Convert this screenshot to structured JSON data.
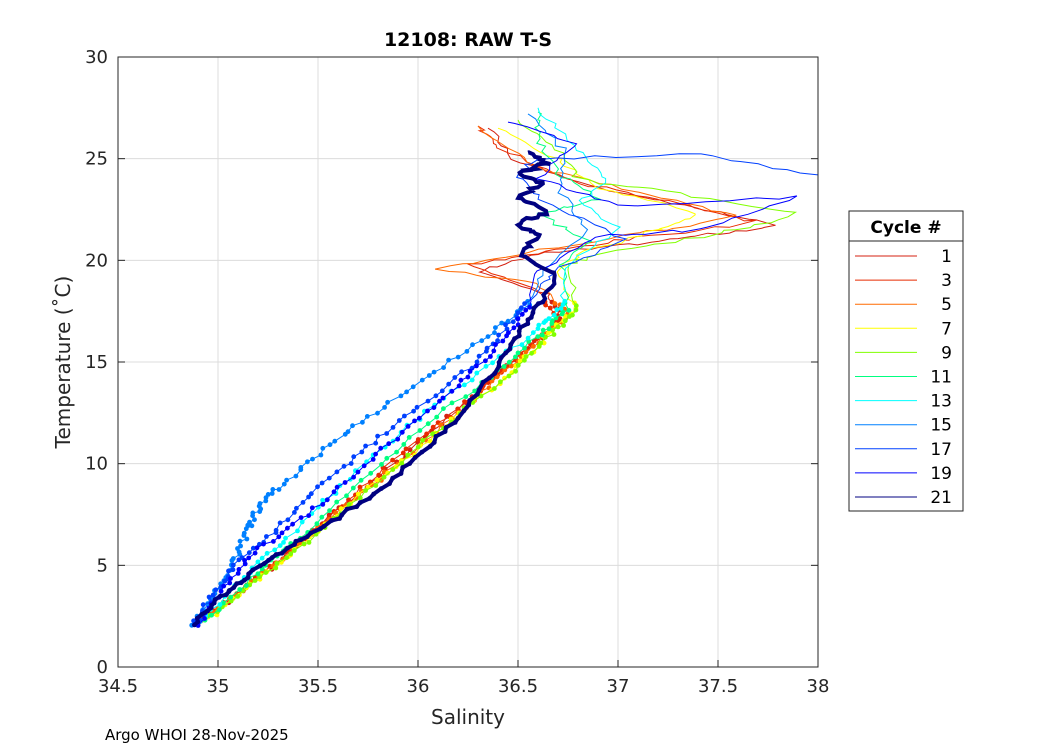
{
  "chart_data": {
    "type": "line",
    "title": "12108: RAW T-S",
    "xlabel": "Salinity",
    "ylabel": "Temperature (˚C)",
    "xlim": [
      34.5,
      38
    ],
    "ylim": [
      0,
      30
    ],
    "xticks": [
      "34.5",
      "35",
      "35.5",
      "36",
      "36.5",
      "37",
      "37.5",
      "38"
    ],
    "yticks": [
      "0",
      "5",
      "10",
      "15",
      "20",
      "25",
      "30"
    ],
    "grid": true,
    "legend": {
      "title": "Cycle #",
      "placement": "outside-right"
    },
    "series": [
      {
        "name": "1",
        "color": "#d42010",
        "points": [
          [
            34.9,
            2.1
          ],
          [
            35.1,
            3.6
          ],
          [
            35.35,
            5.6
          ],
          [
            35.7,
            8.5
          ],
          [
            36.0,
            11
          ],
          [
            36.3,
            13.6
          ],
          [
            36.55,
            15.6
          ],
          [
            36.72,
            17.2
          ],
          [
            36.65,
            18.4
          ],
          [
            36.3,
            19.4
          ],
          [
            36.6,
            20.3
          ],
          [
            37.0,
            20.7
          ],
          [
            37.4,
            21.2
          ],
          [
            37.8,
            21.7
          ],
          [
            37.4,
            22.6
          ],
          [
            36.9,
            23.6
          ],
          [
            36.5,
            24.8
          ],
          [
            36.35,
            26.5
          ]
        ]
      },
      {
        "name": "3",
        "color": "#e82a00",
        "points": [
          [
            34.9,
            2.2
          ],
          [
            35.12,
            3.8
          ],
          [
            35.4,
            6
          ],
          [
            35.65,
            8.2
          ],
          [
            35.95,
            10.8
          ],
          [
            36.28,
            13.3
          ],
          [
            36.5,
            15.2
          ],
          [
            36.7,
            17
          ],
          [
            36.6,
            18.6
          ],
          [
            36.25,
            19.8
          ],
          [
            36.7,
            20.5
          ],
          [
            37.1,
            21.1
          ],
          [
            37.7,
            21.9
          ],
          [
            37.3,
            22.8
          ],
          [
            36.8,
            23.8
          ],
          [
            36.4,
            25.5
          ],
          [
            36.3,
            26.6
          ]
        ]
      },
      {
        "name": "5",
        "color": "#ff6a00",
        "points": [
          [
            34.92,
            2.3
          ],
          [
            35.15,
            4
          ],
          [
            35.38,
            5.8
          ],
          [
            35.72,
            8.6
          ],
          [
            36.05,
            11.2
          ],
          [
            36.35,
            13.8
          ],
          [
            36.58,
            15.8
          ],
          [
            36.75,
            17.4
          ],
          [
            36.6,
            18.8
          ],
          [
            36.1,
            19.6
          ],
          [
            36.55,
            20.4
          ],
          [
            37.1,
            21.3
          ],
          [
            37.6,
            22.2
          ],
          [
            37.1,
            23.4
          ],
          [
            36.6,
            24.5
          ],
          [
            36.3,
            26.6
          ]
        ]
      },
      {
        "name": "7",
        "color": "#ffff00",
        "points": [
          [
            34.95,
            2.4
          ],
          [
            35.2,
            4.3
          ],
          [
            35.42,
            6
          ],
          [
            35.75,
            8.8
          ],
          [
            36.1,
            11.5
          ],
          [
            36.4,
            14
          ],
          [
            36.62,
            16
          ],
          [
            36.78,
            17.6
          ],
          [
            36.7,
            19.5
          ],
          [
            36.8,
            20.3
          ],
          [
            37.2,
            21.5
          ],
          [
            37.4,
            22.3
          ],
          [
            36.9,
            23.6
          ],
          [
            36.7,
            25
          ],
          [
            36.4,
            26.5
          ]
        ]
      },
      {
        "name": "9",
        "color": "#80ff00",
        "points": [
          [
            34.95,
            2.5
          ],
          [
            35.22,
            4.5
          ],
          [
            35.45,
            6.2
          ],
          [
            35.78,
            9
          ],
          [
            36.12,
            11.8
          ],
          [
            36.45,
            14.3
          ],
          [
            36.65,
            16.2
          ],
          [
            36.8,
            17.5
          ],
          [
            36.75,
            19.8
          ],
          [
            36.9,
            20.3
          ],
          [
            37.5,
            21.3
          ],
          [
            37.9,
            22.3
          ],
          [
            37.3,
            23.3
          ],
          [
            36.8,
            24
          ],
          [
            36.7,
            25.5
          ],
          [
            36.5,
            26.9
          ]
        ]
      },
      {
        "name": "11",
        "color": "#00ff80",
        "points": [
          [
            34.93,
            2.3
          ],
          [
            35.2,
            4.6
          ],
          [
            35.4,
            6.3
          ],
          [
            35.72,
            9.2
          ],
          [
            36.05,
            12
          ],
          [
            36.4,
            14.6
          ],
          [
            36.62,
            16.4
          ],
          [
            36.75,
            17.6
          ],
          [
            36.72,
            19.8
          ],
          [
            36.85,
            21
          ],
          [
            36.6,
            22.3
          ],
          [
            36.9,
            23
          ],
          [
            36.7,
            24.3
          ],
          [
            36.6,
            26
          ],
          [
            36.6,
            27.3
          ]
        ]
      },
      {
        "name": "13",
        "color": "#00ffff",
        "points": [
          [
            34.92,
            2.2
          ],
          [
            35.15,
            4.7
          ],
          [
            35.35,
            6.4
          ],
          [
            35.65,
            9.3
          ],
          [
            36.0,
            12.2
          ],
          [
            36.35,
            14.8
          ],
          [
            36.6,
            16.6
          ],
          [
            36.72,
            17.8
          ],
          [
            36.75,
            19.8
          ],
          [
            37.0,
            21.6
          ],
          [
            36.8,
            22.8
          ],
          [
            36.95,
            24
          ],
          [
            36.8,
            25.4
          ],
          [
            36.6,
            27.5
          ]
        ]
      },
      {
        "name": "15",
        "color": "#0080ff",
        "points": [
          [
            34.87,
            2.1
          ],
          [
            34.95,
            3
          ],
          [
            35.02,
            4.2
          ],
          [
            35.1,
            5.5
          ],
          [
            35.15,
            6.8
          ],
          [
            35.2,
            7.8
          ],
          [
            35.3,
            8.8
          ],
          [
            35.5,
            10.5
          ],
          [
            35.75,
            12.3
          ],
          [
            36.05,
            14.3
          ],
          [
            36.35,
            16.3
          ],
          [
            36.55,
            17.8
          ],
          [
            36.62,
            19.5
          ],
          [
            36.85,
            21.5
          ],
          [
            36.7,
            23.5
          ],
          [
            36.75,
            25.2
          ],
          [
            36.55,
            27.2
          ]
        ]
      },
      {
        "name": "17",
        "color": "#0040ff",
        "points": [
          [
            34.88,
            2.2
          ],
          [
            35.0,
            3.8
          ],
          [
            35.1,
            5.2
          ],
          [
            35.3,
            6.8
          ],
          [
            35.5,
            8.8
          ],
          [
            35.75,
            10.8
          ],
          [
            36.0,
            12.8
          ],
          [
            36.3,
            15
          ],
          [
            36.45,
            16.8
          ],
          [
            36.6,
            18.5
          ],
          [
            36.7,
            19.6
          ],
          [
            37.05,
            21
          ],
          [
            36.6,
            23
          ],
          [
            36.5,
            24.3
          ],
          [
            36.6,
            25
          ],
          [
            37.4,
            25.2
          ],
          [
            38.0,
            24.2
          ]
        ]
      },
      {
        "name": "19",
        "color": "#0000ff",
        "points": [
          [
            34.9,
            2.1
          ],
          [
            35.05,
            4.2
          ],
          [
            35.2,
            5.8
          ],
          [
            35.45,
            7.5
          ],
          [
            35.7,
            9.6
          ],
          [
            35.95,
            11.8
          ],
          [
            36.2,
            13.8
          ],
          [
            36.4,
            15.8
          ],
          [
            36.55,
            17.5
          ],
          [
            36.6,
            19.5
          ],
          [
            36.9,
            21.2
          ],
          [
            37.4,
            21.5
          ],
          [
            37.9,
            23.1
          ],
          [
            37.0,
            22.7
          ],
          [
            36.6,
            24
          ],
          [
            36.8,
            25.8
          ],
          [
            36.45,
            26.8
          ]
        ]
      },
      {
        "name": "21",
        "color": "#000080",
        "points": [
          [
            34.88,
            2.1
          ],
          [
            35.0,
            3.3
          ],
          [
            35.12,
            4.3
          ],
          [
            35.3,
            5.5
          ],
          [
            35.5,
            6.8
          ],
          [
            35.75,
            8.3
          ],
          [
            36.0,
            10.3
          ],
          [
            36.2,
            12.3
          ],
          [
            36.38,
            14.5
          ],
          [
            36.5,
            16.3
          ],
          [
            36.6,
            17.8
          ],
          [
            36.7,
            19.2
          ],
          [
            36.5,
            20.3
          ],
          [
            36.6,
            21.2
          ],
          [
            36.5,
            21.8
          ],
          [
            36.65,
            22.4
          ],
          [
            36.5,
            23.1
          ],
          [
            36.62,
            23.8
          ],
          [
            36.5,
            24.3
          ],
          [
            36.65,
            24.8
          ],
          [
            36.55,
            25.3
          ]
        ]
      }
    ]
  },
  "footer": "Argo WHOI 28-Nov-2025"
}
